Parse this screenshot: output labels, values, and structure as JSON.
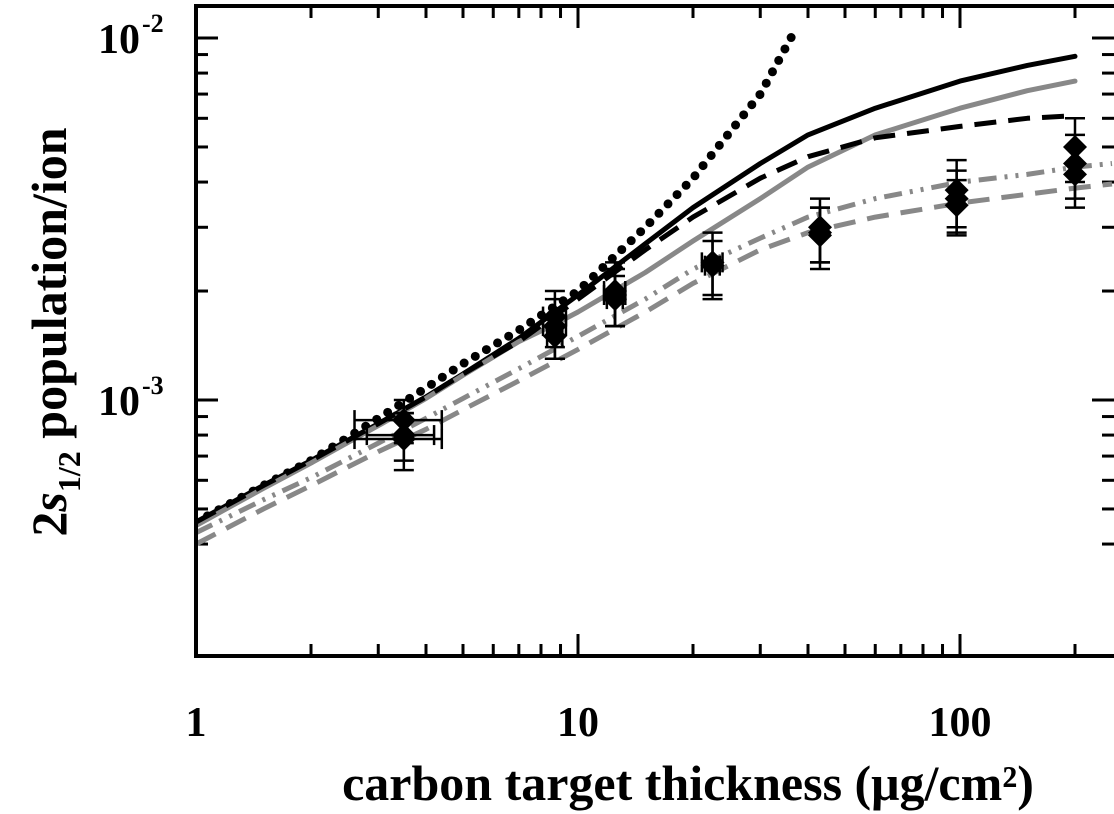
{
  "chart_data": {
    "type": "line",
    "xlabel": "carbon target thickness (μg/cm²)",
    "ylabel": {
      "prefix": "2",
      "italic": "s",
      "sub": "1/2",
      "suffix": " population/ion"
    },
    "x_scale": "log",
    "y_scale": "log",
    "xlim": [
      1,
      250
    ],
    "ylim": [
      0.00035,
      0.012
    ],
    "x_tick_labels": [
      "1",
      "10",
      "100"
    ],
    "y_tick_labels": [
      {
        "base": "10",
        "exp": "-3",
        "value": 0.001
      },
      {
        "base": "10",
        "exp": "-2",
        "value": 0.01
      }
    ],
    "series": [
      {
        "style": "dotted",
        "color": "#000000",
        "x": [
          1,
          1.5,
          2,
          3,
          4,
          5,
          7,
          10,
          15,
          20,
          30,
          37
        ],
        "y": [
          0.00046,
          0.00058,
          0.00068,
          0.00089,
          0.00108,
          0.00126,
          0.00156,
          0.002,
          0.003,
          0.0041,
          0.007,
          0.0105
        ]
      },
      {
        "style": "solid",
        "color": "#000000",
        "x": [
          1,
          1.5,
          2,
          3,
          4,
          5,
          7,
          10,
          15,
          20,
          30,
          40,
          60,
          100,
          150,
          200
        ],
        "y": [
          0.00046,
          0.00058,
          0.00068,
          0.00086,
          0.00102,
          0.00118,
          0.00148,
          0.00195,
          0.0027,
          0.0034,
          0.0045,
          0.0054,
          0.0064,
          0.0076,
          0.0084,
          0.0089
        ]
      },
      {
        "style": "solid",
        "color": "#888888",
        "x": [
          1,
          1.5,
          2,
          3,
          4,
          5,
          7,
          8.5,
          10,
          15,
          20,
          30,
          40,
          60,
          100,
          150,
          200
        ],
        "y": [
          0.00045,
          0.00057,
          0.00067,
          0.00085,
          0.00101,
          0.00117,
          0.00145,
          0.0016,
          0.00175,
          0.00225,
          0.00275,
          0.0036,
          0.0044,
          0.0054,
          0.0064,
          0.00715,
          0.0076
        ]
      },
      {
        "style": "dashed",
        "color": "#000000",
        "x": [
          1,
          1.5,
          2,
          3,
          4,
          5,
          7,
          10,
          15,
          20,
          30,
          40,
          60,
          100,
          150,
          200
        ],
        "y": [
          0.00046,
          0.00058,
          0.00068,
          0.00086,
          0.00102,
          0.00118,
          0.00145,
          0.0019,
          0.0026,
          0.0032,
          0.0041,
          0.0047,
          0.0053,
          0.0057,
          0.006,
          0.0061
        ]
      },
      {
        "style": "dash-dot-dot",
        "color": "#888888",
        "x": [
          1,
          1.5,
          2,
          3,
          4,
          5,
          7,
          10,
          15,
          20,
          30,
          40,
          60,
          100,
          150,
          200,
          250
        ],
        "y": [
          0.00043,
          0.00053,
          0.00061,
          0.00076,
          0.00089,
          0.00101,
          0.00122,
          0.0015,
          0.0019,
          0.0023,
          0.0028,
          0.0032,
          0.0036,
          0.004,
          0.0042,
          0.0044,
          0.0045
        ]
      },
      {
        "style": "dashed",
        "color": "#888888",
        "x": [
          1,
          1.5,
          2,
          3,
          4,
          5,
          7,
          10,
          15,
          20,
          30,
          40,
          60,
          100,
          150,
          200,
          250
        ],
        "y": [
          0.0004,
          0.0005,
          0.00058,
          0.00072,
          0.00083,
          0.00094,
          0.00113,
          0.00138,
          0.00175,
          0.0021,
          0.0026,
          0.0029,
          0.0032,
          0.0035,
          0.0037,
          0.00385,
          0.00395
        ]
      }
    ],
    "data_points": [
      {
        "x": 3.5,
        "y": 0.00088,
        "xerr": [
          0.9,
          0.9
        ],
        "yerr": [
          0.00012,
          0.00012
        ]
      },
      {
        "x": 3.5,
        "y": 0.00078,
        "xerr": [
          0.9,
          0.9
        ],
        "yerr": [
          0.00014,
          0.00014
        ]
      },
      {
        "x": 3.5,
        "y": 0.0008,
        "xerr": [
          0.7,
          0.7
        ],
        "yerr": [
          0.00012,
          0.00012
        ]
      },
      {
        "x": 8.7,
        "y": 0.0017,
        "xerr": [
          0.6,
          0.6
        ],
        "yerr": [
          0.0003,
          0.0003
        ]
      },
      {
        "x": 8.7,
        "y": 0.0016,
        "xerr": [
          0.6,
          0.6
        ],
        "yerr": [
          0.0003,
          0.0003
        ]
      },
      {
        "x": 8.7,
        "y": 0.0015,
        "xerr": [
          0.4,
          0.4
        ],
        "yerr": [
          0.0002,
          0.0002
        ]
      },
      {
        "x": 12.5,
        "y": 0.002,
        "xerr": [
          0.8,
          0.8
        ],
        "yerr": [
          0.0004,
          0.0004
        ]
      },
      {
        "x": 12.5,
        "y": 0.00195,
        "xerr": [
          0.8,
          0.8
        ],
        "yerr": [
          0.00035,
          0.00035
        ]
      },
      {
        "x": 12.5,
        "y": 0.0019,
        "xerr": [
          0.6,
          0.6
        ],
        "yerr": [
          0.0003,
          0.0003
        ]
      },
      {
        "x": 22.5,
        "y": 0.0024,
        "xerr": [
          1.4,
          1.4
        ],
        "yerr": [
          0.0005,
          0.0005
        ]
      },
      {
        "x": 22.5,
        "y": 0.00235,
        "xerr": [
          1.0,
          1.0
        ],
        "yerr": [
          0.0004,
          0.0004
        ]
      },
      {
        "x": 43,
        "y": 0.003,
        "xerr": [
          0,
          0
        ],
        "yerr": [
          0.0006,
          0.0006
        ]
      },
      {
        "x": 43,
        "y": 0.00285,
        "xerr": [
          0,
          0
        ],
        "yerr": [
          0.00055,
          0.00055
        ]
      },
      {
        "x": 43,
        "y": 0.0029,
        "xerr": [
          0,
          0
        ],
        "yerr": [
          0.0005,
          0.0005
        ]
      },
      {
        "x": 98,
        "y": 0.0038,
        "xerr": [
          0,
          0
        ],
        "yerr": [
          0.0008,
          0.0008
        ]
      },
      {
        "x": 98,
        "y": 0.0036,
        "xerr": [
          0,
          0
        ],
        "yerr": [
          0.0007,
          0.0007
        ]
      },
      {
        "x": 98,
        "y": 0.00345,
        "xerr": [
          0,
          0
        ],
        "yerr": [
          0.0006,
          0.0006
        ]
      },
      {
        "x": 200,
        "y": 0.005,
        "xerr": [
          0,
          0
        ],
        "yerr": [
          0.001,
          0.001
        ]
      },
      {
        "x": 200,
        "y": 0.0045,
        "xerr": [
          0,
          0
        ],
        "yerr": [
          0.0009,
          0.0009
        ]
      },
      {
        "x": 200,
        "y": 0.0042,
        "xerr": [
          0,
          0
        ],
        "yerr": [
          0.0008,
          0.0008
        ]
      }
    ]
  }
}
